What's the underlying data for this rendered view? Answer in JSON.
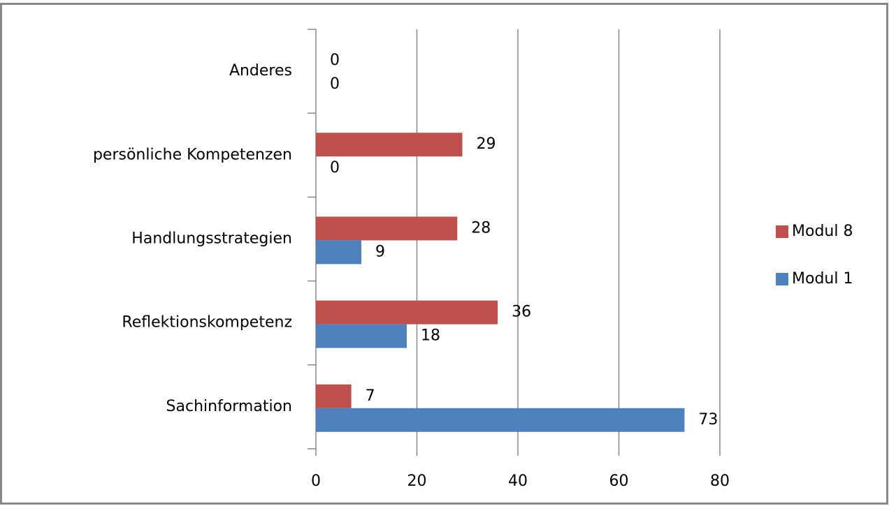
{
  "chart_data": {
    "type": "bar",
    "orientation": "horizontal",
    "categories": [
      "Sachinformation",
      "Reflektionskompetenz",
      "Handlungsstrategien",
      "persönliche Kompetenzen",
      "Anderes"
    ],
    "series": [
      {
        "name": "Modul 8",
        "color": "#c0504d",
        "values": [
          7,
          36,
          28,
          29,
          0
        ]
      },
      {
        "name": "Modul 1",
        "color": "#4f81bd",
        "values": [
          73,
          18,
          9,
          0,
          0
        ]
      }
    ],
    "xlim": [
      0,
      80
    ],
    "xticks": [
      0,
      20,
      40,
      60,
      80
    ],
    "grid": true,
    "legend": "right"
  }
}
